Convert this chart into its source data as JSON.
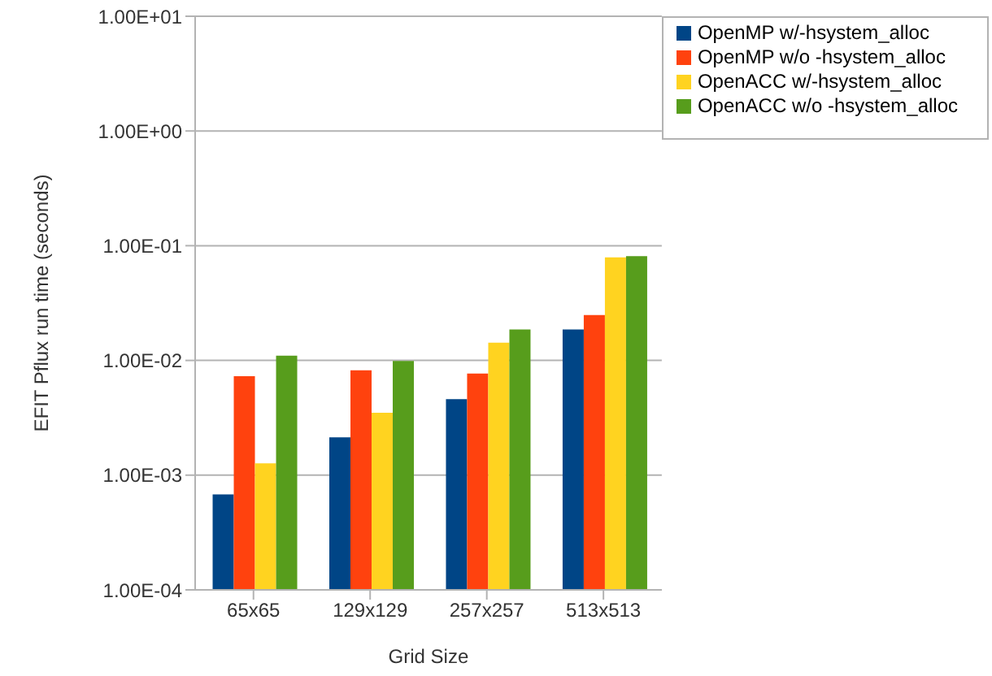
{
  "chart_data": {
    "type": "bar",
    "xlabel": "Grid Size",
    "ylabel": "EFIT Pflux run time (seconds)",
    "categories": [
      "65x65",
      "129x129",
      "257x257",
      "513x513"
    ],
    "series": [
      {
        "name": "OpenMP w/-hsystem_alloc",
        "color": "#004586",
        "values": [
          0.00068,
          0.00214,
          0.0046,
          0.0186
        ]
      },
      {
        "name": "OpenMP w/o -hsystem_alloc",
        "color": "#ff420e",
        "values": [
          0.0073,
          0.0082,
          0.0077,
          0.0249
        ]
      },
      {
        "name": "OpenACC w/-hsystem_alloc",
        "color": "#ffd320",
        "values": [
          0.00127,
          0.0035,
          0.0143,
          0.079
        ]
      },
      {
        "name": "OpenACC w/o -hsystem_alloc",
        "color": "#579d1c",
        "values": [
          0.011,
          0.0099,
          0.0186,
          0.081
        ]
      }
    ],
    "log": "y",
    "ylim": [
      0.0001,
      10
    ],
    "yticks": [
      {
        "value": 0.0001,
        "label": "1.00E-04"
      },
      {
        "value": 0.001,
        "label": "1.00E-03"
      },
      {
        "value": 0.01,
        "label": "1.00E-02"
      },
      {
        "value": 0.1,
        "label": "1.00E-01"
      },
      {
        "value": 1,
        "label": "1.00E+00"
      },
      {
        "value": 10,
        "label": "1.00E+01"
      }
    ],
    "grid": "y",
    "legend": "top right"
  }
}
